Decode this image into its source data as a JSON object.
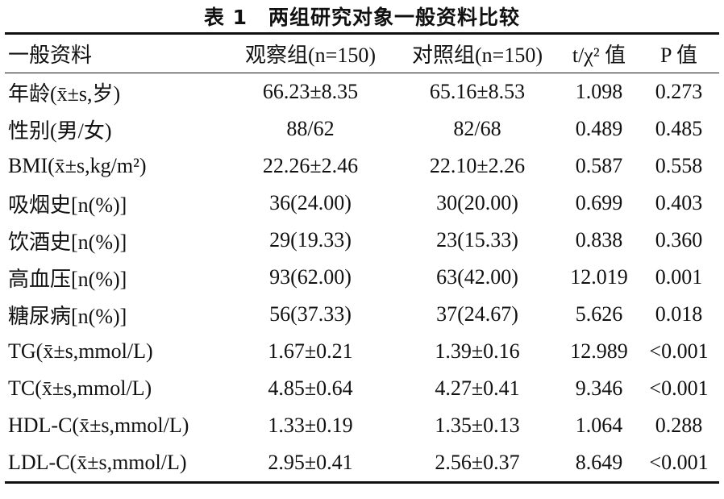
{
  "title": "表 1　两组研究对象一般资料比较",
  "table": {
    "headers": [
      "一般资料",
      "观察组(n=150)",
      "对照组(n=150)",
      "t/χ² 值",
      "P 值"
    ],
    "rows": [
      [
        "年龄(x̄±s,岁)",
        "66.23±8.35",
        "65.16±8.53",
        "1.098",
        "0.273"
      ],
      [
        "性别(男/女)",
        "88/62",
        "82/68",
        "0.489",
        "0.485"
      ],
      [
        "BMI(x̄±s,kg/m²)",
        "22.26±2.46",
        "22.10±2.26",
        "0.587",
        "0.558"
      ],
      [
        "吸烟史[n(%)]",
        "36(24.00)",
        "30(20.00)",
        "0.699",
        "0.403"
      ],
      [
        "饮酒史[n(%)]",
        "29(19.33)",
        "23(15.33)",
        "0.838",
        "0.360"
      ],
      [
        "高血压[n(%)]",
        "93(62.00)",
        "63(42.00)",
        "12.019",
        "0.001"
      ],
      [
        "糖尿病[n(%)]",
        "56(37.33)",
        "37(24.67)",
        "5.626",
        "0.018"
      ],
      [
        "TG(x̄±s,mmol/L)",
        "1.67±0.21",
        "1.39±0.16",
        "12.989",
        "<0.001"
      ],
      [
        "TC(x̄±s,mmol/L)",
        "4.85±0.64",
        "4.27±0.41",
        "9.346",
        "<0.001"
      ],
      [
        "HDL-C(x̄±s,mmol/L)",
        "1.33±0.19",
        "1.35±0.13",
        "1.064",
        "0.288"
      ],
      [
        "LDL-C(x̄±s,mmol/L)",
        "2.95±0.41",
        "2.56±0.37",
        "8.649",
        "<0.001"
      ]
    ]
  }
}
